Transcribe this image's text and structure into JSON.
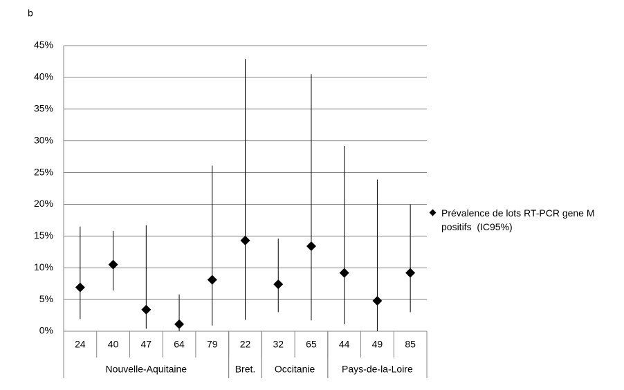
{
  "panel_label": "b",
  "chart_data": {
    "type": "errorbar",
    "categories": [
      "24",
      "40",
      "47",
      "64",
      "79",
      "22",
      "32",
      "65",
      "44",
      "49",
      "85"
    ],
    "groups": [
      {
        "label": "Nouvelle-Aquitaine",
        "span": 5
      },
      {
        "label": "Bret.",
        "span": 1
      },
      {
        "label": "Occitanie",
        "span": 2
      },
      {
        "label": "Pays-de-la-Loire",
        "span": 3
      }
    ],
    "series": [
      {
        "name": "Prévalence de lots RT-PCR gene M positifs  (IC95%)",
        "color": "#000000",
        "values": [
          6.9,
          10.5,
          3.4,
          1.1,
          8.1,
          14.3,
          7.4,
          13.4,
          9.2,
          4.8,
          9.2
        ],
        "lower": [
          1.9,
          6.4,
          0.4,
          0,
          0.9,
          1.8,
          3.0,
          1.7,
          1.1,
          0,
          3.0
        ],
        "upper": [
          16.5,
          15.8,
          16.7,
          5.8,
          26.1,
          42.9,
          14.6,
          40.5,
          29.2,
          23.9,
          20.0
        ]
      }
    ],
    "ylim": [
      0,
      45
    ],
    "yticks": [
      {
        "value": 0,
        "label": "0%"
      },
      {
        "value": 5,
        "label": "5%"
      },
      {
        "value": 10,
        "label": "10%"
      },
      {
        "value": 15,
        "label": "15%"
      },
      {
        "value": 20,
        "label": "20%"
      },
      {
        "value": 25,
        "label": "25%"
      },
      {
        "value": 30,
        "label": "30%"
      },
      {
        "value": 35,
        "label": "35%"
      },
      {
        "value": 40,
        "label": "40%"
      },
      {
        "value": 45,
        "label": "45%"
      }
    ],
    "grid": true,
    "legend": "right"
  }
}
